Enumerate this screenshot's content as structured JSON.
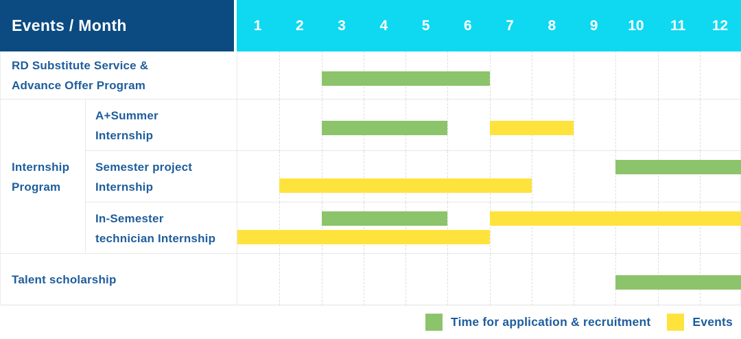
{
  "header": {
    "title": "Events / Month",
    "months": [
      "1",
      "2",
      "3",
      "4",
      "5",
      "6",
      "7",
      "8",
      "9",
      "10",
      "11",
      "12"
    ]
  },
  "colors": {
    "header_navy": "#0b4b82",
    "header_cyan": "#0ed9f1",
    "label_blue": "#1e5d9d",
    "application_green": "#8cc46b",
    "events_yellow": "#ffe33d",
    "grid_line": "#e7e7e7"
  },
  "legend": [
    {
      "series": "application",
      "color": "#8cc46b",
      "label": "Time for application & recruitment"
    },
    {
      "series": "events",
      "color": "#ffe33d",
      "label": "Events"
    }
  ],
  "chart_data": {
    "type": "bar",
    "subtype": "gantt-schedule",
    "title": "Events / Month",
    "x_axis": {
      "unit": "month",
      "ticks": [
        1,
        2,
        3,
        4,
        5,
        6,
        7,
        8,
        9,
        10,
        11,
        12
      ],
      "range": [
        1,
        12
      ]
    },
    "grid": "dashed-vertical-month-lines",
    "legend_position": "bottom-right",
    "group": {
      "label": "Internship Program",
      "label_lines": [
        "Internship",
        "Program"
      ],
      "row_indexes": [
        1,
        2,
        3
      ]
    },
    "rows": [
      {
        "label": "RD Substitute Service & Advance Offer Program",
        "label_lines": [
          "RD Substitute Service &",
          "Advance Offer Program"
        ],
        "group": null,
        "lines": 1,
        "bars": [
          {
            "series": "application",
            "start_month": 3,
            "end_month": 6,
            "line": 0
          }
        ]
      },
      {
        "label": "A+Summer Internship",
        "label_lines": [
          "A+Summer",
          "Internship"
        ],
        "group": "Internship Program",
        "lines": 1,
        "bars": [
          {
            "series": "application",
            "start_month": 3,
            "end_month": 5,
            "line": 0
          },
          {
            "series": "events",
            "start_month": 7,
            "end_month": 8,
            "line": 0
          }
        ]
      },
      {
        "label": "Semester project Internship",
        "label_lines": [
          "Semester project",
          "Internship"
        ],
        "group": "Internship Program",
        "lines": 2,
        "bars": [
          {
            "series": "application",
            "start_month": 10,
            "end_month": 12,
            "line": 0
          },
          {
            "series": "events",
            "start_month": 2,
            "end_month": 7,
            "line": 1
          }
        ]
      },
      {
        "label": "In-Semester technician Internship",
        "label_lines": [
          "In-Semester",
          "technician Internship"
        ],
        "group": "Internship Program",
        "lines": 2,
        "bars": [
          {
            "series": "application",
            "start_month": 3,
            "end_month": 5,
            "line": 0
          },
          {
            "series": "events",
            "start_month": 7,
            "end_month": 12,
            "line": 0
          },
          {
            "series": "events",
            "start_month": 1,
            "end_month": 6,
            "line": 1
          }
        ]
      },
      {
        "label": "Talent scholarship",
        "label_lines": [
          "Talent scholarship"
        ],
        "group": null,
        "lines": 1,
        "bars": [
          {
            "series": "application",
            "start_month": 10,
            "end_month": 12,
            "line": 0
          }
        ]
      }
    ]
  }
}
